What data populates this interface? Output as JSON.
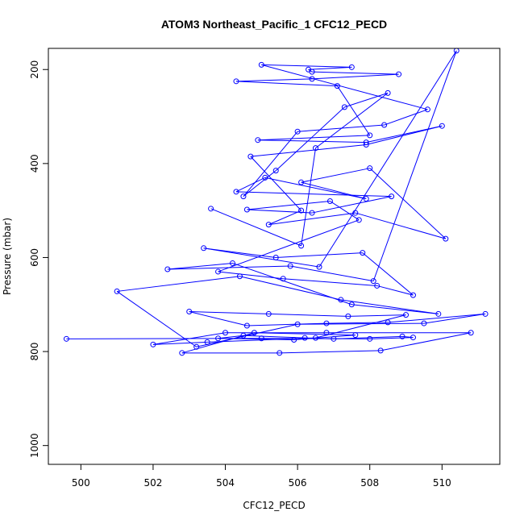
{
  "chart_data": {
    "type": "scatter",
    "title": "ATOM3 Northeast_Pacific_1 CFC12_PECD",
    "xlabel": "CFC12_PECD",
    "ylabel": "Pressure (mbar)",
    "xlim": [
      499.1,
      511.6
    ],
    "ylim": [
      1040,
      155
    ],
    "y_reversed": true,
    "xticks": [
      500,
      502,
      504,
      506,
      508,
      510
    ],
    "yticks": [
      200,
      400,
      600,
      800,
      1000
    ],
    "grid": false,
    "legend": "none",
    "colors": {
      "series": "#0000ff",
      "axis": "#000000",
      "background": "#ffffff"
    },
    "series": [
      {
        "x": [
          499.6,
          505.0,
          508.0,
          509.2,
          508.9,
          507.0,
          506.2,
          504.5,
          503.8,
          505.9,
          507.6,
          504.8,
          502.8,
          505.5,
          508.3,
          510.8,
          506.8,
          504.0,
          502.0,
          503.5,
          506.5,
          509.0,
          507.4,
          505.2,
          503.0,
          504.6,
          506.8,
          508.5,
          511.2,
          509.5,
          506.0,
          503.2,
          501.0,
          504.4,
          507.2,
          509.9,
          507.5,
          504.2,
          502.4,
          505.8,
          508.1,
          510.4,
          506.6,
          503.4,
          505.4,
          507.8,
          509.2,
          508.2,
          505.6,
          503.8,
          507.7,
          506.9,
          504.6,
          506.4,
          508.6,
          504.3,
          505.1,
          507.9,
          506.1,
          508.0,
          510.1,
          507.6,
          505.2,
          506.1,
          504.7,
          507.9,
          510.0,
          507.9,
          504.9,
          508.0,
          507.1,
          504.3,
          506.4,
          508.8,
          506.4,
          506.3,
          507.5,
          505.0,
          509.6,
          508.4,
          506.0,
          504.5,
          505.4,
          507.3,
          508.5,
          506.5,
          506.1,
          503.6
        ],
        "y": [
          773,
          772,
          773,
          770,
          768,
          773,
          771,
          766,
          772,
          775,
          765,
          760,
          803,
          803,
          798,
          760,
          760,
          760,
          785,
          780,
          771,
          722,
          725,
          720,
          715,
          745,
          740,
          738,
          720,
          740,
          742,
          790,
          672,
          640,
          690,
          720,
          700,
          612,
          625,
          618,
          650,
          160,
          620,
          580,
          600,
          590,
          680,
          660,
          645,
          630,
          520,
          480,
          498,
          505,
          470,
          460,
          430,
          475,
          440,
          410,
          560,
          505,
          530,
          500,
          385,
          360,
          320,
          355,
          350,
          340,
          235,
          225,
          220,
          210,
          205,
          200,
          195,
          190,
          285,
          318,
          332,
          470,
          415,
          280,
          250,
          367,
          575,
          496
        ]
      }
    ]
  }
}
